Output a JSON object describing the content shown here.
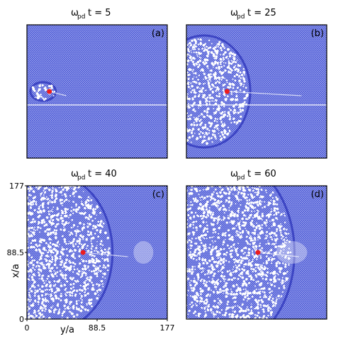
{
  "panels": [
    {
      "symbol": "ω",
      "subscript": "pd",
      "title": "t = 5",
      "label": "(a)"
    },
    {
      "symbol": "ω",
      "subscript": "pd",
      "title": "t = 25",
      "label": "(b)"
    },
    {
      "symbol": "ω",
      "subscript": "pd",
      "title": "t = 40",
      "label": "(c)"
    },
    {
      "symbol": "ω",
      "subscript": "pd",
      "title": "t = 60",
      "label": "(d)"
    }
  ],
  "axes": {
    "xlabel": "y/a",
    "ylabel": "x/a",
    "xticks": [
      0,
      88.5,
      177
    ],
    "yticks": [
      0,
      88.5,
      177
    ]
  }
}
